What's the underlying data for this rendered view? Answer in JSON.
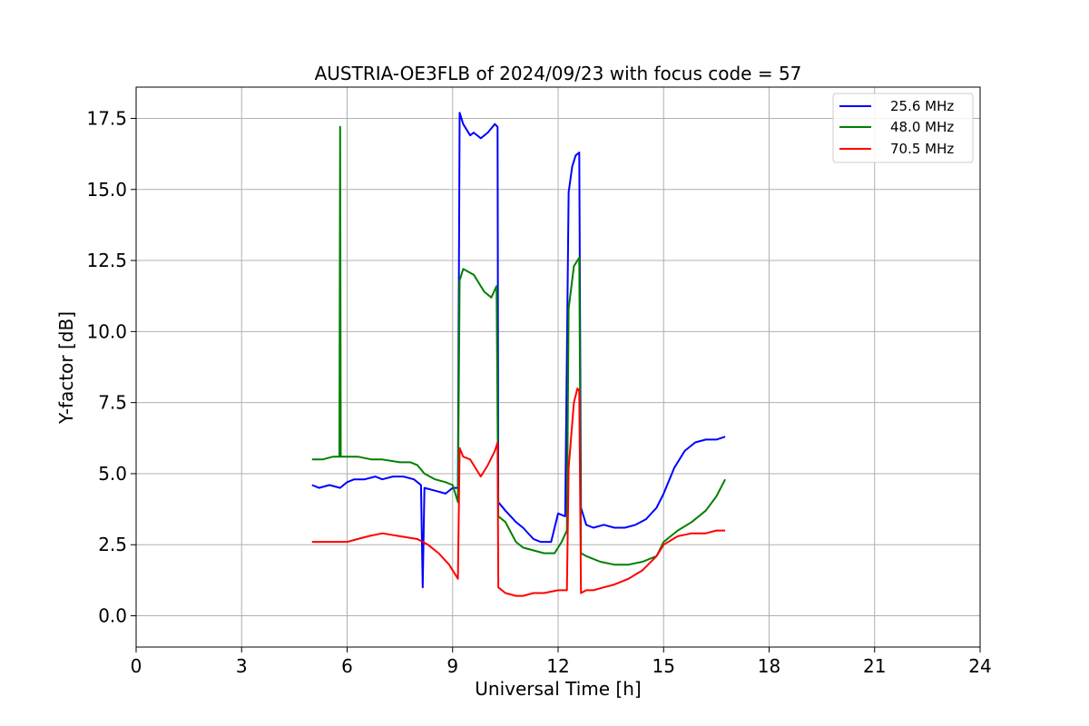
{
  "chart_data": {
    "type": "line",
    "title": "AUSTRIA-OE3FLB of 2024/09/23 with focus code = 57",
    "xlabel": "Universal Time [h]",
    "ylabel": "Y-factor [dB]",
    "xlim": [
      0,
      24
    ],
    "ylim": [
      -1.1,
      18.6
    ],
    "xticks": [
      0,
      3,
      6,
      9,
      12,
      15,
      18,
      21,
      24
    ],
    "yticks": [
      0.0,
      2.5,
      5.0,
      7.5,
      10.0,
      12.5,
      15.0,
      17.5
    ],
    "xtick_labels": [
      "0",
      "3",
      "6",
      "9",
      "12",
      "15",
      "18",
      "21",
      "24"
    ],
    "ytick_labels": [
      "0.0",
      "2.5",
      "5.0",
      "7.5",
      "10.0",
      "12.5",
      "15.0",
      "17.5"
    ],
    "grid": true,
    "legend_position": "top-right",
    "series": [
      {
        "name": "25.6 MHz",
        "color": "#0000ff",
        "x": [
          5.0,
          5.2,
          5.5,
          5.8,
          6.0,
          6.2,
          6.5,
          6.8,
          7.0,
          7.3,
          7.6,
          7.9,
          8.1,
          8.15,
          8.2,
          8.5,
          8.8,
          9.0,
          9.15,
          9.2,
          9.3,
          9.5,
          9.6,
          9.8,
          10.0,
          10.2,
          10.28,
          10.3,
          10.5,
          10.8,
          11.0,
          11.3,
          11.5,
          11.8,
          12.0,
          12.2,
          12.3,
          12.4,
          12.5,
          12.6,
          12.65,
          12.8,
          13.0,
          13.3,
          13.6,
          13.9,
          14.2,
          14.5,
          14.8,
          15.0,
          15.3,
          15.6,
          15.9,
          16.2,
          16.5,
          16.75
        ],
        "y": [
          4.6,
          4.5,
          4.6,
          4.5,
          4.7,
          4.8,
          4.8,
          4.9,
          4.8,
          4.9,
          4.9,
          4.8,
          4.6,
          1.0,
          4.5,
          4.4,
          4.3,
          4.5,
          4.5,
          17.7,
          17.3,
          16.9,
          17.0,
          16.8,
          17.0,
          17.3,
          17.2,
          4.0,
          3.7,
          3.3,
          3.1,
          2.7,
          2.6,
          2.6,
          3.6,
          3.5,
          14.9,
          15.8,
          16.2,
          16.3,
          3.8,
          3.2,
          3.1,
          3.2,
          3.1,
          3.1,
          3.2,
          3.4,
          3.8,
          4.3,
          5.2,
          5.8,
          6.1,
          6.2,
          6.2,
          6.3
        ]
      },
      {
        "name": "48.0 MHz",
        "color": "#008000",
        "x": [
          5.0,
          5.3,
          5.6,
          5.78,
          5.8,
          5.82,
          6.0,
          6.3,
          6.7,
          7.0,
          7.5,
          7.8,
          8.0,
          8.2,
          8.5,
          8.8,
          9.0,
          9.15,
          9.2,
          9.3,
          9.6,
          9.9,
          10.1,
          10.25,
          10.3,
          10.5,
          10.8,
          11.0,
          11.3,
          11.6,
          11.9,
          12.1,
          12.25,
          12.3,
          12.45,
          12.6,
          12.65,
          12.8,
          13.2,
          13.6,
          14.0,
          14.4,
          14.8,
          15.0,
          15.4,
          15.8,
          16.2,
          16.5,
          16.75
        ],
        "y": [
          5.5,
          5.5,
          5.6,
          5.6,
          17.2,
          5.6,
          5.6,
          5.6,
          5.5,
          5.5,
          5.4,
          5.4,
          5.3,
          5.0,
          4.8,
          4.7,
          4.6,
          4.0,
          11.8,
          12.2,
          12.0,
          11.4,
          11.2,
          11.6,
          3.5,
          3.3,
          2.6,
          2.4,
          2.3,
          2.2,
          2.2,
          2.6,
          3.0,
          10.8,
          12.3,
          12.6,
          2.2,
          2.1,
          1.9,
          1.8,
          1.8,
          1.9,
          2.1,
          2.6,
          3.0,
          3.3,
          3.7,
          4.2,
          4.8
        ]
      },
      {
        "name": "70.5 MHz",
        "color": "#ff0000",
        "x": [
          5.0,
          5.3,
          5.6,
          6.0,
          6.3,
          6.6,
          7.0,
          7.5,
          8.0,
          8.3,
          8.6,
          8.9,
          9.15,
          9.2,
          9.3,
          9.5,
          9.8,
          10.0,
          10.2,
          10.28,
          10.3,
          10.5,
          10.8,
          11.0,
          11.3,
          11.6,
          12.0,
          12.25,
          12.3,
          12.45,
          12.55,
          12.6,
          12.65,
          12.8,
          13.0,
          13.3,
          13.6,
          14.0,
          14.4,
          14.8,
          15.0,
          15.4,
          15.8,
          16.2,
          16.5,
          16.75
        ],
        "y": [
          2.6,
          2.6,
          2.6,
          2.6,
          2.7,
          2.8,
          2.9,
          2.8,
          2.7,
          2.5,
          2.2,
          1.8,
          1.3,
          5.9,
          5.6,
          5.5,
          4.9,
          5.3,
          5.8,
          6.1,
          1.0,
          0.8,
          0.7,
          0.7,
          0.8,
          0.8,
          0.9,
          0.9,
          5.2,
          7.5,
          8.0,
          7.9,
          0.8,
          0.9,
          0.9,
          1.0,
          1.1,
          1.3,
          1.6,
          2.1,
          2.5,
          2.8,
          2.9,
          2.9,
          3.0,
          3.0
        ]
      }
    ]
  }
}
